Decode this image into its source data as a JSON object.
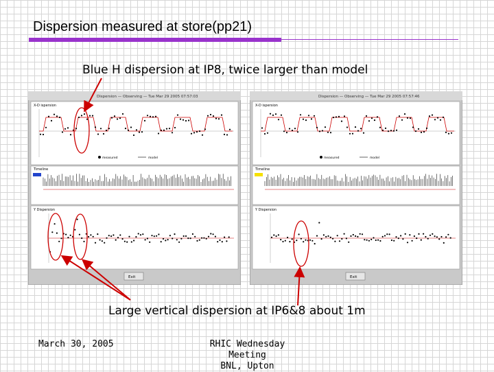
{
  "slide": {
    "title": "Dispersion measured at store(pp21)",
    "subtitle": "Blue H dispersion at IP8, twice larger than model",
    "bottom_note": "Large vertical dispersion at IP6&8 about 1m",
    "footer_date": "March 30, 2005",
    "footer_meeting_line1": "RHIC Wednesday Meeting",
    "footer_meeting_line2": "BNL, Upton"
  },
  "colors": {
    "accent": "#9933cc",
    "highlight": "#cc0000",
    "model_line": "#cc0000",
    "blue_ring": "#2244cc",
    "yellow_ring": "#f5e000"
  },
  "screens": {
    "left": {
      "window_title": "Dispersion — Observing — Tue Mar 29 2005 07:57:03",
      "h_panel": "X-D ispersion",
      "timeline_panel": "Timeline",
      "v_panel": "Y Dispersion",
      "legend_measured": "measured",
      "legend_model": "model",
      "exit": "Exit"
    },
    "right": {
      "window_title": "Dispersion — Observing — Tue Mar 29 2005 07:57:46",
      "h_panel": "X-D ispersion",
      "timeline_panel": "Timeline",
      "v_panel": "Y Dispersion",
      "legend_measured": "measured",
      "legend_model": "model",
      "exit": "Exit"
    }
  }
}
